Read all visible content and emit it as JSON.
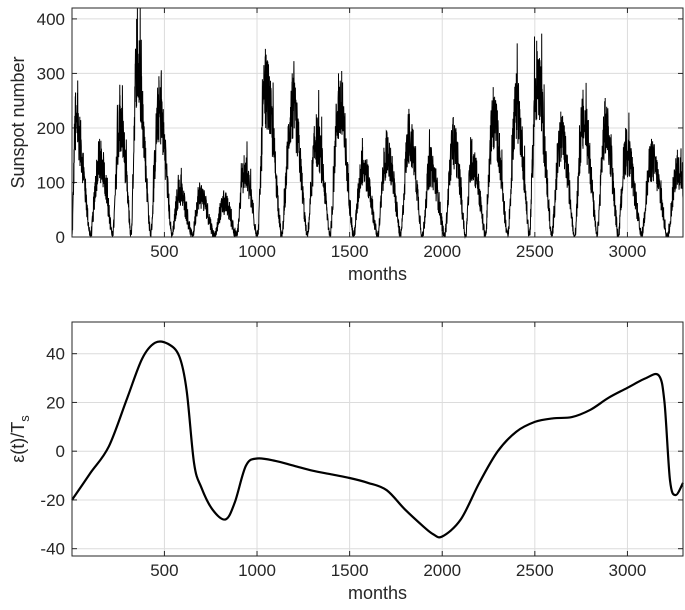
{
  "chart_data": [
    {
      "type": "line",
      "xlabel": "months",
      "ylabel": "Sunspot number",
      "xlim": [
        1,
        3300
      ],
      "ylim": [
        0,
        420
      ],
      "xticks": [
        500,
        1000,
        1500,
        2000,
        2500,
        3000
      ],
      "yticks": [
        0,
        100,
        200,
        300,
        400
      ],
      "grid": true,
      "series": [
        {
          "style": "noisy monthly series",
          "cycle_peaks": [
            {
              "x": 20,
              "y": 265
            },
            {
              "x": 150,
              "y": 180
            },
            {
              "x": 260,
              "y": 260
            },
            {
              "x": 350,
              "y": 400
            },
            {
              "x": 470,
              "y": 295
            },
            {
              "x": 580,
              "y": 105
            },
            {
              "x": 690,
              "y": 100
            },
            {
              "x": 820,
              "y": 80
            },
            {
              "x": 930,
              "y": 150
            },
            {
              "x": 1045,
              "y": 345
            },
            {
              "x": 1190,
              "y": 300
            },
            {
              "x": 1320,
              "y": 225
            },
            {
              "x": 1440,
              "y": 300
            },
            {
              "x": 1570,
              "y": 165
            },
            {
              "x": 1700,
              "y": 195
            },
            {
              "x": 1820,
              "y": 235
            },
            {
              "x": 1935,
              "y": 165
            },
            {
              "x": 2060,
              "y": 220
            },
            {
              "x": 2160,
              "y": 180
            },
            {
              "x": 2275,
              "y": 275
            },
            {
              "x": 2400,
              "y": 300
            },
            {
              "x": 2510,
              "y": 360
            },
            {
              "x": 2640,
              "y": 230
            },
            {
              "x": 2760,
              "y": 270
            },
            {
              "x": 2880,
              "y": 255
            },
            {
              "x": 2990,
              "y": 200
            },
            {
              "x": 3130,
              "y": 180
            },
            {
              "x": 3270,
              "y": 160
            }
          ]
        }
      ]
    },
    {
      "type": "line",
      "xlabel": "months",
      "ylabel": "ε(t)/T",
      "ylabel_sub": "s",
      "xlim": [
        1,
        3300
      ],
      "ylim": [
        -43,
        53
      ],
      "xticks": [
        500,
        1000,
        1500,
        2000,
        2500,
        3000
      ],
      "yticks": [
        -40,
        -20,
        0,
        20,
        40
      ],
      "grid": true,
      "series": [
        {
          "x": [
            1,
            100,
            200,
            300,
            380,
            450,
            520,
            580,
            620,
            660,
            700,
            760,
            830,
            880,
            940,
            1000,
            1100,
            1200,
            1300,
            1400,
            1500,
            1600,
            1700,
            1800,
            1900,
            1950,
            2000,
            2100,
            2200,
            2300,
            2400,
            2500,
            2600,
            2700,
            2800,
            2900,
            3000,
            3100,
            3170,
            3200,
            3230,
            3260,
            3300
          ],
          "y": [
            -20,
            -9,
            2,
            22,
            38,
            44.5,
            44,
            39,
            25,
            -5,
            -15,
            -24,
            -28,
            -21,
            -6,
            -3,
            -4,
            -6,
            -8,
            -9.5,
            -11,
            -13,
            -16,
            -24,
            -31,
            -34,
            -35,
            -28,
            -13,
            0,
            8,
            12,
            13.5,
            14,
            17,
            22,
            26,
            30,
            31,
            20,
            -12,
            -18,
            -13
          ]
        }
      ]
    }
  ]
}
